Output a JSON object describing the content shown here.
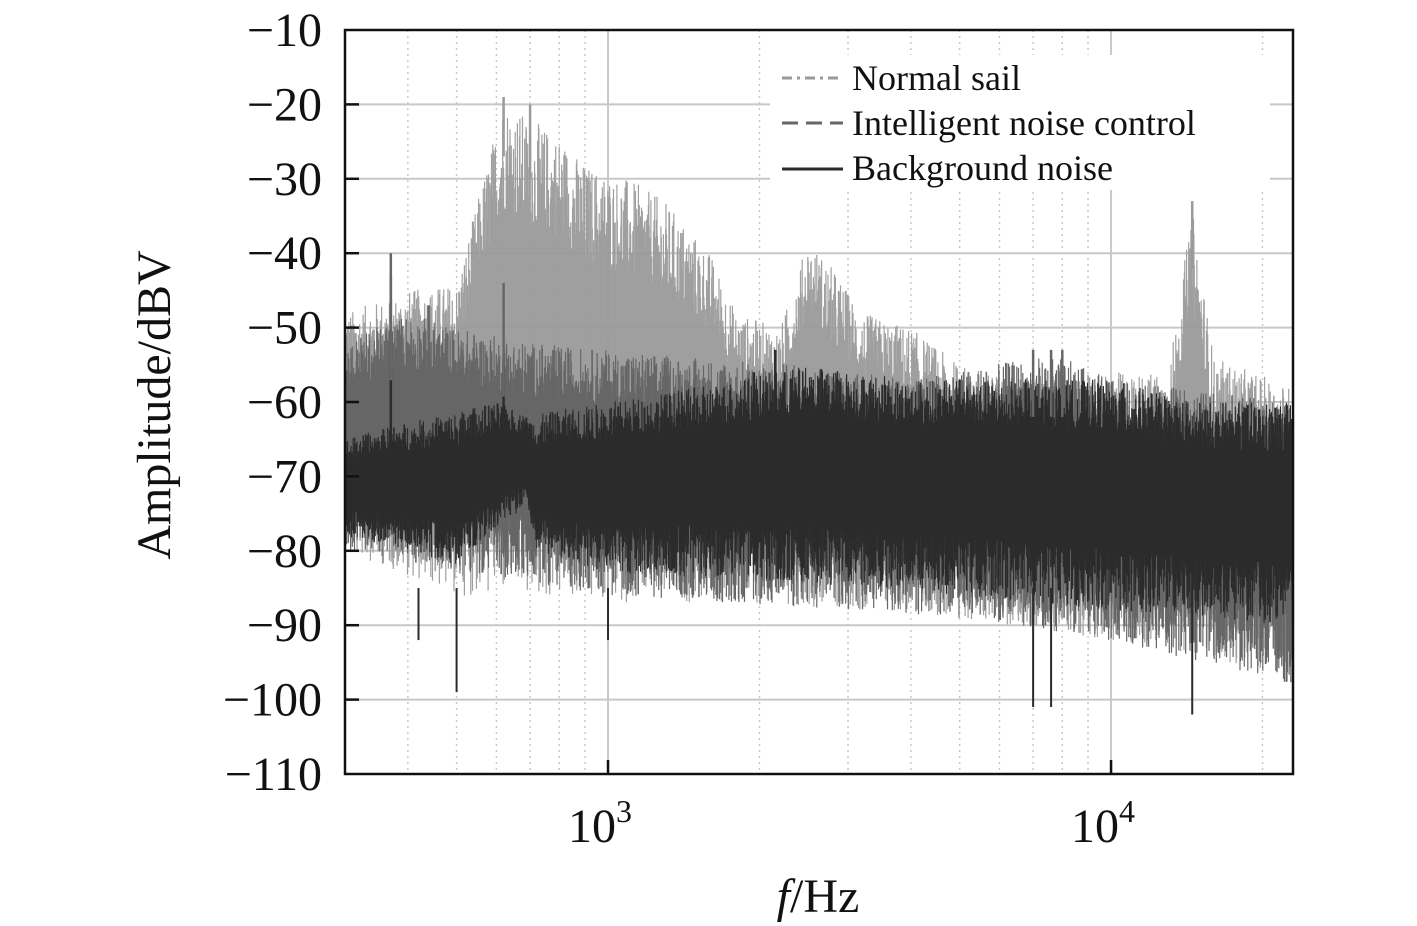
{
  "chart_data": {
    "type": "line",
    "xlabel": {
      "italic": "f",
      "rest": "/Hz"
    },
    "ylabel": "Amplitude/dBV",
    "xscale": "log",
    "xlim": [
      300,
      23000
    ],
    "ylim": [
      -110,
      -10
    ],
    "y_ticks": [
      -10,
      -20,
      -30,
      -40,
      -50,
      -60,
      -70,
      -80,
      -90,
      -100,
      -110
    ],
    "x_ticks": [
      {
        "value": 1000,
        "base": "10",
        "exp": "3"
      },
      {
        "value": 10000,
        "base": "10",
        "exp": "4"
      }
    ],
    "grid": true,
    "legend_position": "top-right",
    "series": [
      {
        "name": "Normal sail",
        "style": "dash-dot",
        "color": "#9a9a9a",
        "envelope": {
          "top": [
            [
              300,
              -48
            ],
            [
              400,
              -45
            ],
            [
              500,
              -44
            ],
            [
              620,
              -19
            ],
            [
              700,
              -22
            ],
            [
              800,
              -24
            ],
            [
              900,
              -28
            ],
            [
              1100,
              -30
            ],
            [
              1300,
              -33
            ],
            [
              1600,
              -40
            ],
            [
              1800,
              -48
            ],
            [
              2200,
              -50
            ],
            [
              2500,
              -38
            ],
            [
              2800,
              -42
            ],
            [
              3200,
              -48
            ],
            [
              4000,
              -50
            ],
            [
              5000,
              -55
            ],
            [
              7000,
              -57
            ],
            [
              10000,
              -56
            ],
            [
              13000,
              -56
            ],
            [
              14500,
              -34
            ],
            [
              16000,
              -54
            ],
            [
              23000,
              -58
            ]
          ],
          "bottom": [
            [
              300,
              -80
            ],
            [
              500,
              -86
            ],
            [
              1000,
              -87
            ],
            [
              2000,
              -87
            ],
            [
              5000,
              -89
            ],
            [
              10000,
              -92
            ],
            [
              15000,
              -94
            ],
            [
              23000,
              -97
            ]
          ]
        }
      },
      {
        "name": "Intelligent noise control",
        "style": "dashed",
        "color": "#666666",
        "envelope": {
          "top": [
            [
              300,
              -52
            ],
            [
              400,
              -48
            ],
            [
              500,
              -50
            ],
            [
              700,
              -52
            ],
            [
              1000,
              -53
            ],
            [
              1500,
              -54
            ],
            [
              2500,
              -55
            ],
            [
              4000,
              -57
            ],
            [
              7000,
              -54
            ],
            [
              8000,
              -54
            ],
            [
              10000,
              -57
            ],
            [
              23000,
              -60
            ]
          ],
          "bottom": [
            [
              300,
              -80
            ],
            [
              1000,
              -86
            ],
            [
              5000,
              -89
            ],
            [
              10000,
              -92
            ],
            [
              23000,
              -98
            ]
          ]
        }
      },
      {
        "name": "Background noise",
        "style": "solid",
        "color": "#2b2b2b",
        "envelope": {
          "top": [
            [
              300,
              -65
            ],
            [
              380,
              -63
            ],
            [
              450,
              -62
            ],
            [
              600,
              -60
            ],
            [
              700,
              -62
            ],
            [
              800,
              -61
            ],
            [
              1000,
              -60
            ],
            [
              1500,
              -58
            ],
            [
              2500,
              -55
            ],
            [
              4000,
              -57
            ],
            [
              7000,
              -57
            ],
            [
              10000,
              -57
            ],
            [
              15000,
              -60
            ],
            [
              23000,
              -60
            ]
          ],
          "bottom": [
            [
              300,
              -78
            ],
            [
              400,
              -80
            ],
            [
              500,
              -82
            ],
            [
              690,
              -74
            ],
            [
              720,
              -80
            ],
            [
              1000,
              -83
            ],
            [
              2000,
              -84
            ],
            [
              5000,
              -86
            ],
            [
              10000,
              -88
            ],
            [
              15000,
              -89
            ],
            [
              23000,
              -90
            ]
          ]
        }
      }
    ],
    "spikes": [
      {
        "series": "Background noise",
        "x": 370,
        "y": -43
      },
      {
        "series": "Background noise",
        "x": 620,
        "y": -54
      },
      {
        "series": "Background noise",
        "x": 2150,
        "y": -53
      },
      {
        "series": "Background noise",
        "x": 1950,
        "y": -56
      },
      {
        "series": "Background noise",
        "x": 5000,
        "y": -57
      },
      {
        "series": "Intelligent noise control",
        "x": 370,
        "y": -40
      },
      {
        "series": "Intelligent noise control",
        "x": 440,
        "y": -47
      },
      {
        "series": "Intelligent noise control",
        "x": 620,
        "y": -44
      },
      {
        "series": "Intelligent noise control",
        "x": 7000,
        "y": -53
      },
      {
        "series": "Intelligent noise control",
        "x": 7600,
        "y": -53
      },
      {
        "series": "Intelligent noise control",
        "x": 8000,
        "y": -53
      },
      {
        "series": "Normal sail",
        "x": 620,
        "y": -19
      },
      {
        "series": "Normal sail",
        "x": 700,
        "y": -20
      },
      {
        "series": "Normal sail",
        "x": 14500,
        "y": -33
      }
    ],
    "dips": [
      {
        "x": 500,
        "y": -99
      },
      {
        "x": 7000,
        "y": -101
      },
      {
        "x": 7600,
        "y": -101
      },
      {
        "x": 14500,
        "y": -102
      },
      {
        "x": 420,
        "y": -92
      },
      {
        "x": 1000,
        "y": -92
      }
    ]
  }
}
